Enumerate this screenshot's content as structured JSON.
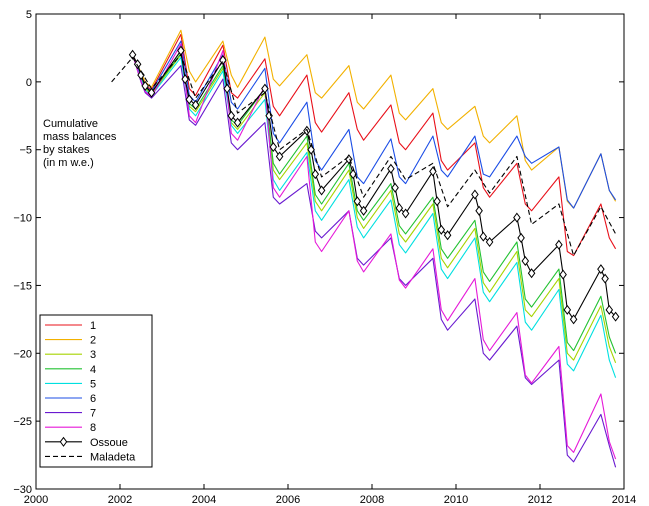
{
  "chart_data": {
    "type": "line",
    "annotation": [
      "Cumulative",
      "mass balances",
      "by stakes",
      "(in m w.e.)"
    ],
    "xlim": [
      2000,
      2014
    ],
    "ylim": [
      -30,
      5
    ],
    "xticks": [
      2000,
      2002,
      2004,
      2006,
      2008,
      2010,
      2012,
      2014
    ],
    "yticks": [
      5,
      0,
      -5,
      -10,
      -15,
      -20,
      -25,
      -30
    ],
    "grid": false,
    "legend_position": "bottom-left",
    "series": [
      {
        "name": "1",
        "color": "#e8101a",
        "x": [
          2002.3,
          2002.5,
          2002.6,
          2002.75,
          2003.45,
          2003.65,
          2003.8,
          2004.45,
          2004.65,
          2004.8,
          2005.45,
          2005.65,
          2005.8,
          2006.45,
          2006.65,
          2006.8,
          2007.45,
          2007.65,
          2007.8,
          2008.45,
          2008.65,
          2008.8,
          2009.45,
          2009.65,
          2009.8,
          2010.45,
          2010.65,
          2010.8,
          2011.45,
          2011.65,
          2011.8,
          2012.45,
          2012.65,
          2012.8,
          2013.45,
          2013.65,
          2013.8
        ],
        "y": [
          2,
          0.5,
          -0.2,
          -0.6,
          3.5,
          -0.5,
          -1.0,
          2.7,
          -0.8,
          -1.2,
          1.7,
          -1.8,
          -2.5,
          0.5,
          -3.0,
          -3.7,
          -0.8,
          -3.5,
          -4.3,
          -1.7,
          -4.5,
          -5.0,
          -2.3,
          -5.8,
          -6.5,
          -4.5,
          -7.8,
          -8.5,
          -6.0,
          -9.0,
          -9.5,
          -7.0,
          -12.5,
          -12.8,
          -9.0,
          -11.5,
          -12.3
        ]
      },
      {
        "name": "2",
        "color": "#f2b100",
        "x": [
          2002.3,
          2002.5,
          2002.6,
          2002.75,
          2003.45,
          2003.65,
          2003.8,
          2004.45,
          2004.65,
          2004.8,
          2005.45,
          2005.65,
          2005.8,
          2006.45,
          2006.65,
          2006.8,
          2007.45,
          2007.65,
          2007.8,
          2008.45,
          2008.65,
          2008.8,
          2009.45,
          2009.65,
          2009.8,
          2010.45,
          2010.65,
          2010.8,
          2011.45,
          2011.65,
          2011.8,
          2012.45,
          2012.65,
          2012.8,
          2013.45,
          2013.65,
          2013.8
        ],
        "y": [
          2,
          0.7,
          0.0,
          -0.4,
          3.8,
          0.8,
          0.0,
          3.0,
          0.5,
          -0.4,
          3.3,
          0.2,
          -0.3,
          2.0,
          -0.8,
          -1.2,
          1.2,
          -1.5,
          -2.0,
          0.5,
          -2.3,
          -2.8,
          -0.5,
          -3.0,
          -3.5,
          -1.8,
          -4.0,
          -4.5,
          -2.5,
          -5.8,
          -6.5,
          -4.8,
          -8.8,
          -9.3,
          -5.3,
          -8.0,
          -8.8
        ]
      },
      {
        "name": "3",
        "color": "#a6d400",
        "x": [
          2002.3,
          2002.5,
          2002.6,
          2002.75,
          2003.45,
          2003.65,
          2003.8,
          2004.45,
          2004.65,
          2004.8,
          2005.45,
          2005.65,
          2005.8,
          2006.45,
          2006.65,
          2006.8,
          2007.45,
          2007.65,
          2007.8,
          2008.45,
          2008.65,
          2008.8,
          2009.45,
          2009.65,
          2009.8,
          2010.45,
          2010.65,
          2010.8,
          2011.45,
          2011.65,
          2011.8,
          2012.45,
          2012.65,
          2012.8,
          2013.45,
          2013.65,
          2013.8
        ],
        "y": [
          2,
          0.3,
          -0.5,
          -0.9,
          2.0,
          -1.8,
          -2.2,
          1.0,
          -3.0,
          -3.5,
          -0.8,
          -6.5,
          -7.2,
          -4.5,
          -8.8,
          -9.5,
          -6.5,
          -10.0,
          -10.8,
          -8.0,
          -11.2,
          -11.8,
          -9.0,
          -13.0,
          -13.7,
          -10.8,
          -14.8,
          -15.5,
          -12.5,
          -16.8,
          -17.3,
          -14.5,
          -20.0,
          -20.5,
          -16.5,
          -19.5,
          -20.7
        ]
      },
      {
        "name": "4",
        "color": "#22c232",
        "x": [
          2002.3,
          2002.5,
          2002.6,
          2002.75,
          2003.45,
          2003.65,
          2003.8,
          2004.45,
          2004.65,
          2004.8,
          2005.45,
          2005.65,
          2005.8,
          2006.45,
          2006.65,
          2006.8,
          2007.45,
          2007.65,
          2007.8,
          2008.45,
          2008.65,
          2008.8,
          2009.45,
          2009.65,
          2009.8,
          2010.45,
          2010.65,
          2010.8,
          2011.45,
          2011.65,
          2011.8,
          2012.45,
          2012.65,
          2012.8,
          2013.45,
          2013.65,
          2013.8
        ],
        "y": [
          2,
          0.3,
          -0.4,
          -0.8,
          2.1,
          -1.6,
          -2.0,
          1.2,
          -2.8,
          -3.2,
          -0.5,
          -6.0,
          -6.8,
          -4.0,
          -8.3,
          -9.0,
          -6.0,
          -9.5,
          -10.2,
          -7.5,
          -10.6,
          -11.2,
          -8.5,
          -12.3,
          -13.0,
          -10.2,
          -14.0,
          -14.7,
          -11.8,
          -16.0,
          -16.6,
          -13.8,
          -19.2,
          -19.8,
          -15.8,
          -18.8,
          -20.0
        ]
      },
      {
        "name": "5",
        "color": "#00e0e0",
        "x": [
          2002.3,
          2002.5,
          2002.6,
          2002.75,
          2003.45,
          2003.65,
          2003.8,
          2004.45,
          2004.65,
          2004.8,
          2005.45,
          2005.65,
          2005.8,
          2006.45,
          2006.65,
          2006.8,
          2007.45,
          2007.65,
          2007.8,
          2008.45,
          2008.65,
          2008.8,
          2009.45,
          2009.65,
          2009.8,
          2010.45,
          2010.65,
          2010.8,
          2011.45,
          2011.65,
          2011.8,
          2012.45,
          2012.65,
          2012.8,
          2013.45,
          2013.65,
          2013.8
        ],
        "y": [
          2,
          0.2,
          -0.6,
          -1.0,
          1.8,
          -2.0,
          -2.5,
          0.8,
          -3.2,
          -3.8,
          -1.3,
          -7.2,
          -8.0,
          -5.2,
          -9.5,
          -10.2,
          -7.2,
          -10.7,
          -11.5,
          -8.7,
          -12.0,
          -12.6,
          -9.7,
          -13.8,
          -14.5,
          -11.5,
          -15.5,
          -16.2,
          -13.3,
          -17.7,
          -18.3,
          -15.3,
          -20.8,
          -21.3,
          -17.2,
          -20.5,
          -21.8
        ]
      },
      {
        "name": "6",
        "color": "#1b4de6",
        "x": [
          2002.3,
          2002.5,
          2002.6,
          2002.75,
          2003.45,
          2003.65,
          2003.8,
          2004.45,
          2004.65,
          2004.8,
          2005.45,
          2005.65,
          2005.8,
          2006.45,
          2006.65,
          2006.8,
          2007.45,
          2007.65,
          2007.8,
          2008.45,
          2008.65,
          2008.8,
          2009.45,
          2009.65,
          2009.8,
          2010.45,
          2010.65,
          2010.8,
          2011.45,
          2011.65,
          2011.8,
          2012.45,
          2012.65,
          2012.8,
          2013.45,
          2013.65,
          2013.8
        ],
        "y": [
          2,
          0.5,
          -0.3,
          -0.7,
          3.0,
          -1.0,
          -1.5,
          2.0,
          -1.5,
          -2.0,
          1.0,
          -3.8,
          -4.5,
          -1.5,
          -5.8,
          -6.5,
          -3.5,
          -7.0,
          -7.5,
          -4.2,
          -7.0,
          -7.5,
          -4.0,
          -6.5,
          -7.0,
          -4.0,
          -6.8,
          -7.0,
          -4.0,
          -5.5,
          -6.0,
          -4.8,
          -8.7,
          -9.3,
          -5.3,
          -8.0,
          -8.7
        ]
      },
      {
        "name": "7",
        "color": "#6a1ad0",
        "x": [
          2002.3,
          2002.5,
          2002.6,
          2002.75,
          2003.45,
          2003.65,
          2003.8,
          2004.45,
          2004.65,
          2004.8,
          2005.45,
          2005.65,
          2005.8,
          2006.45,
          2006.65,
          2006.8,
          2007.45,
          2007.65,
          2007.8,
          2008.45,
          2008.65,
          2008.8,
          2009.45,
          2009.65,
          2009.8,
          2010.45,
          2010.65,
          2010.8,
          2011.45,
          2011.65,
          2011.8,
          2012.45,
          2012.65,
          2012.8,
          2013.45,
          2013.65,
          2013.8
        ],
        "y": [
          2,
          0.0,
          -0.8,
          -1.2,
          1.2,
          -2.8,
          -3.2,
          0.2,
          -4.5,
          -5.0,
          -3.0,
          -8.5,
          -9.0,
          -7.5,
          -11.0,
          -11.5,
          -9.5,
          -13.0,
          -13.5,
          -11.5,
          -14.5,
          -15.0,
          -13.0,
          -17.5,
          -18.3,
          -16.0,
          -20.0,
          -20.5,
          -18.0,
          -21.8,
          -22.3,
          -20.5,
          -27.5,
          -28.0,
          -24.5,
          -26.8,
          -28.4
        ]
      },
      {
        "name": "8",
        "color": "#e619d8",
        "x": [
          2002.3,
          2002.5,
          2002.6,
          2002.75,
          2003.45,
          2003.65,
          2003.8,
          2004.45,
          2004.65,
          2004.8,
          2005.45,
          2005.65,
          2005.8,
          2006.45,
          2006.65,
          2006.8,
          2007.45,
          2007.65,
          2007.8,
          2008.45,
          2008.65,
          2008.8,
          2009.45,
          2009.65,
          2009.8,
          2010.45,
          2010.65,
          2010.8,
          2011.45,
          2011.65,
          2011.8,
          2012.45,
          2012.65,
          2012.8,
          2013.45,
          2013.65,
          2013.8
        ],
        "y": [
          2,
          0.1,
          -0.7,
          -1.1,
          2.8,
          -2.5,
          -3.0,
          2.3,
          -3.8,
          -4.3,
          -0.3,
          -7.8,
          -8.5,
          -5.5,
          -11.8,
          -12.5,
          -9.5,
          -13.2,
          -14.0,
          -11.2,
          -14.6,
          -15.2,
          -12.3,
          -16.8,
          -17.6,
          -14.5,
          -19.0,
          -19.8,
          -17.0,
          -21.6,
          -22.2,
          -19.5,
          -26.8,
          -27.3,
          -23.0,
          -26.5,
          -27.8
        ]
      },
      {
        "name": "Ossoue",
        "color": "#000000",
        "marker": "diamond",
        "x": [
          2002.3,
          2002.42,
          2002.5,
          2002.6,
          2002.75,
          2003.45,
          2003.55,
          2003.65,
          2003.8,
          2004.45,
          2004.55,
          2004.65,
          2004.8,
          2005.45,
          2005.55,
          2005.65,
          2005.8,
          2006.45,
          2006.55,
          2006.65,
          2006.8,
          2007.45,
          2007.55,
          2007.65,
          2007.8,
          2008.45,
          2008.55,
          2008.65,
          2008.8,
          2009.45,
          2009.55,
          2009.65,
          2009.8,
          2010.45,
          2010.55,
          2010.65,
          2010.8,
          2011.45,
          2011.55,
          2011.65,
          2011.8,
          2012.45,
          2012.55,
          2012.65,
          2012.8,
          2013.45,
          2013.55,
          2013.65,
          2013.8
        ],
        "y": [
          2.0,
          1.3,
          0.5,
          -0.3,
          -0.8,
          2.3,
          0.2,
          -1.3,
          -1.7,
          1.6,
          -0.5,
          -2.5,
          -3.0,
          -0.5,
          -2.5,
          -4.8,
          -5.5,
          -3.6,
          -5.0,
          -6.8,
          -8.0,
          -5.7,
          -6.8,
          -8.8,
          -9.5,
          -6.4,
          -7.8,
          -9.3,
          -9.7,
          -6.6,
          -8.8,
          -10.9,
          -11.3,
          -8.3,
          -9.5,
          -11.4,
          -11.8,
          -10.0,
          -11.5,
          -13.2,
          -14.1,
          -12.0,
          -14.2,
          -16.8,
          -17.5,
          -13.8,
          -14.5,
          -16.8,
          -17.3
        ]
      },
      {
        "name": "Maladeta",
        "color": "#000000",
        "dash": true,
        "x": [
          2001.8,
          2002.3,
          2002.75,
          2003.45,
          2003.8,
          2004.45,
          2004.8,
          2005.45,
          2005.8,
          2006.45,
          2006.8,
          2007.45,
          2007.8,
          2008.45,
          2008.8,
          2009.45,
          2009.8,
          2010.45,
          2010.8,
          2011.45,
          2011.8,
          2012.45,
          2012.8,
          2013.45,
          2013.8
        ],
        "y": [
          0.0,
          1.8,
          -0.5,
          2.0,
          -1.2,
          1.5,
          -2.3,
          -0.8,
          -5.0,
          -3.5,
          -7.0,
          -5.5,
          -8.5,
          -5.5,
          -7.2,
          -6.0,
          -9.2,
          -6.5,
          -8.2,
          -5.5,
          -10.5,
          -9.0,
          -12.8,
          -9.2,
          -11.2
        ]
      }
    ]
  }
}
